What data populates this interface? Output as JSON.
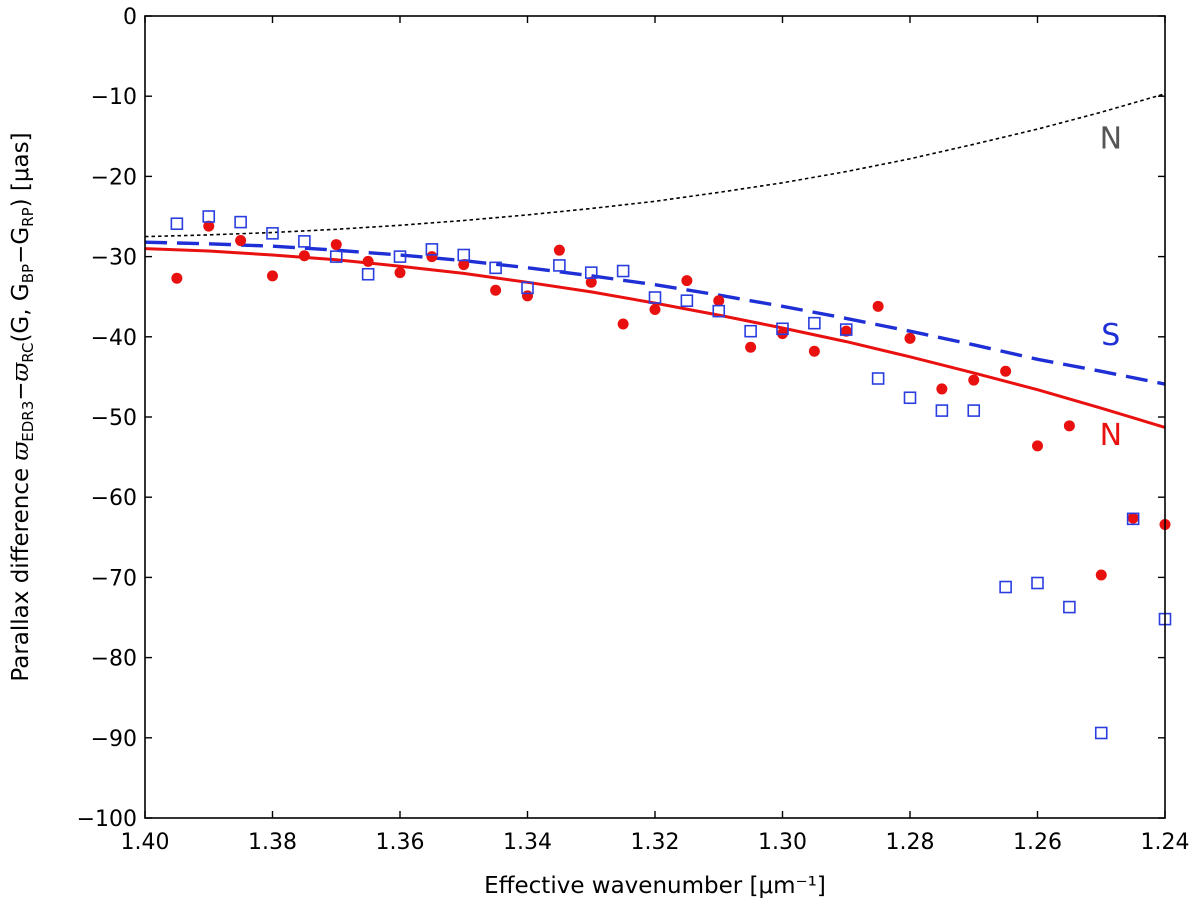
{
  "chart_data": {
    "type": "scatter",
    "title": "",
    "xlabel": "Effective wavenumber [μm⁻¹]",
    "ylabel": {
      "prefix": "Parallax difference ",
      "varpi": "ϖ",
      "sub1": "EDR3",
      "minus": "−",
      "sub2": "RC",
      "mid": "(G, G",
      "sub3": "BP",
      "minus2": "−G",
      "sub4": "RP",
      "suffix": ") [μas]"
    },
    "xlim": [
      1.4,
      1.24
    ],
    "ylim": [
      -100,
      0
    ],
    "x_reversed": true,
    "grid": false,
    "x_ticks": [
      {
        "value": 1.4,
        "label": "1.40"
      },
      {
        "value": 1.38,
        "label": "1.38"
      },
      {
        "value": 1.36,
        "label": "1.36"
      },
      {
        "value": 1.34,
        "label": "1.34"
      },
      {
        "value": 1.32,
        "label": "1.32"
      },
      {
        "value": 1.3,
        "label": "1.30"
      },
      {
        "value": 1.28,
        "label": "1.28"
      },
      {
        "value": 1.26,
        "label": "1.26"
      },
      {
        "value": 1.24,
        "label": "1.24"
      }
    ],
    "y_ticks": [
      {
        "value": 0,
        "label": "0"
      },
      {
        "value": -10,
        "label": "−10"
      },
      {
        "value": -20,
        "label": "−20"
      },
      {
        "value": -30,
        "label": "−30"
      },
      {
        "value": -40,
        "label": "−40"
      },
      {
        "value": -50,
        "label": "−50"
      },
      {
        "value": -60,
        "label": "−60"
      },
      {
        "value": -70,
        "label": "−70"
      },
      {
        "value": -80,
        "label": "−80"
      },
      {
        "value": -90,
        "label": "−90"
      },
      {
        "value": -100,
        "label": "−100"
      }
    ],
    "series": [
      {
        "key": "north-points",
        "marker": "filled-circle",
        "color": "#e8110f",
        "x": [
          1.395,
          1.39,
          1.385,
          1.38,
          1.375,
          1.37,
          1.365,
          1.36,
          1.355,
          1.35,
          1.345,
          1.34,
          1.335,
          1.33,
          1.325,
          1.32,
          1.315,
          1.31,
          1.305,
          1.3,
          1.295,
          1.29,
          1.285,
          1.28,
          1.275,
          1.27,
          1.265,
          1.26,
          1.255,
          1.25,
          1.245,
          1.24
        ],
        "y": [
          -32.7,
          -26.2,
          -28.0,
          -32.4,
          -29.9,
          -28.5,
          -30.6,
          -32.0,
          -30.0,
          -31.0,
          -34.2,
          -34.9,
          -29.2,
          -33.2,
          -38.4,
          -36.6,
          -33.0,
          -35.5,
          -41.3,
          -39.6,
          -41.8,
          -39.3,
          -36.2,
          -40.2,
          -46.5,
          -45.4,
          -44.3,
          -53.6,
          -51.1,
          -69.7,
          -62.6,
          -63.4
        ]
      },
      {
        "key": "south-points",
        "marker": "open-square",
        "color": "#2a3ee0",
        "x": [
          1.395,
          1.39,
          1.385,
          1.38,
          1.375,
          1.37,
          1.365,
          1.36,
          1.355,
          1.35,
          1.345,
          1.34,
          1.335,
          1.33,
          1.325,
          1.32,
          1.315,
          1.31,
          1.305,
          1.3,
          1.295,
          1.29,
          1.285,
          1.28,
          1.275,
          1.27,
          1.265,
          1.26,
          1.255,
          1.25,
          1.245,
          1.24
        ],
        "y": [
          -25.9,
          -25.0,
          -25.7,
          -27.1,
          -28.1,
          -30.0,
          -32.2,
          -30.0,
          -29.1,
          -29.8,
          -31.4,
          -33.9,
          -31.1,
          -32.0,
          -31.8,
          -35.1,
          -35.5,
          -36.8,
          -39.3,
          -39.0,
          -38.3,
          -39.1,
          -45.2,
          -47.6,
          -49.2,
          -49.2,
          -71.2,
          -70.7,
          -73.7,
          -89.4,
          -62.7,
          -75.2
        ]
      }
    ],
    "curves": [
      {
        "key": "north-dotted",
        "style": "dotted",
        "color": "#000000",
        "x": [
          1.4,
          1.39,
          1.38,
          1.37,
          1.36,
          1.35,
          1.34,
          1.33,
          1.32,
          1.31,
          1.3,
          1.29,
          1.28,
          1.27,
          1.26,
          1.25,
          1.24
        ],
        "y": [
          -27.5,
          -27.3,
          -27.0,
          -26.6,
          -26.1,
          -25.5,
          -24.8,
          -24.0,
          -23.1,
          -22.0,
          -20.8,
          -19.4,
          -17.8,
          -16.0,
          -14.1,
          -12.0,
          -9.7
        ]
      },
      {
        "key": "south-dashed",
        "style": "dashed",
        "color": "#1f2fd6",
        "x": [
          1.4,
          1.39,
          1.38,
          1.37,
          1.36,
          1.35,
          1.34,
          1.33,
          1.32,
          1.31,
          1.3,
          1.29,
          1.28,
          1.27,
          1.26,
          1.25,
          1.24
        ],
        "y": [
          -28.2,
          -28.4,
          -28.7,
          -29.2,
          -29.8,
          -30.5,
          -31.4,
          -32.4,
          -33.5,
          -34.8,
          -36.2,
          -37.7,
          -39.3,
          -41.0,
          -42.8,
          -44.3,
          -45.9
        ]
      },
      {
        "key": "north-solid",
        "style": "solid",
        "color": "#e8110f",
        "x": [
          1.4,
          1.39,
          1.38,
          1.37,
          1.36,
          1.35,
          1.34,
          1.33,
          1.32,
          1.31,
          1.3,
          1.29,
          1.28,
          1.27,
          1.26,
          1.25,
          1.24
        ],
        "y": [
          -29.0,
          -29.3,
          -29.8,
          -30.4,
          -31.2,
          -32.1,
          -33.2,
          -34.4,
          -35.8,
          -37.3,
          -38.9,
          -40.6,
          -42.5,
          -44.5,
          -46.6,
          -48.9,
          -51.3
        ]
      }
    ],
    "annotations": [
      {
        "key": "label-n-dotted",
        "text": "N",
        "color": "#555555",
        "x": 1.2485,
        "y": -16.5
      },
      {
        "key": "label-s",
        "text": "S",
        "color": "#1f2fd6",
        "x": 1.2485,
        "y": -41.0
      },
      {
        "key": "label-n-solid",
        "text": "N",
        "color": "#e8110f",
        "x": 1.2485,
        "y": -53.5
      }
    ]
  }
}
